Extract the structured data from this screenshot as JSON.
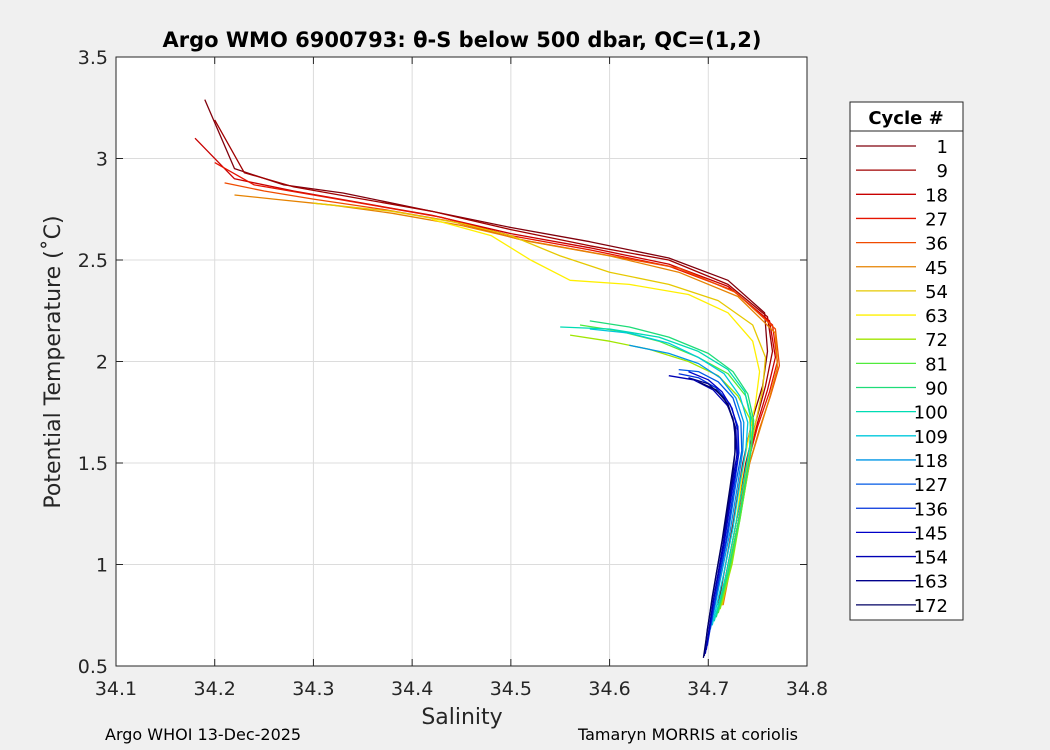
{
  "chart_data": {
    "type": "line",
    "title": "Argo WMO 6900793: θ-S below 500 dbar,  QC=(1,2)",
    "xlabel": "Salinity",
    "ylabel": "Potential Temperature (˚C)",
    "xlim": [
      34.1,
      34.8
    ],
    "ylim": [
      0.5,
      3.5
    ],
    "xticks": [
      "34.1",
      "34.2",
      "34.3",
      "34.4",
      "34.5",
      "34.6",
      "34.7",
      "34.8"
    ],
    "yticks": [
      "0.5",
      "1",
      "1.5",
      "2",
      "2.5",
      "3",
      "3.5"
    ],
    "grid": true,
    "legend": {
      "title": "Cycle #",
      "placement": "outside-right"
    },
    "series": [
      {
        "name": "1",
        "color": "#80000c",
        "points": [
          [
            34.19,
            3.29
          ],
          [
            34.22,
            2.95
          ],
          [
            34.27,
            2.87
          ],
          [
            34.33,
            2.83
          ],
          [
            34.4,
            2.76
          ],
          [
            34.5,
            2.66
          ],
          [
            34.58,
            2.59
          ],
          [
            34.66,
            2.51
          ],
          [
            34.72,
            2.4
          ],
          [
            34.757,
            2.24
          ],
          [
            34.76,
            2.05
          ],
          [
            34.755,
            1.88
          ],
          [
            34.745,
            1.72
          ],
          [
            34.735,
            1.5
          ],
          [
            34.725,
            1.2
          ],
          [
            34.71,
            0.8
          ]
        ]
      },
      {
        "name": "9",
        "color": "#a00000",
        "points": [
          [
            34.2,
            3.19
          ],
          [
            34.23,
            2.93
          ],
          [
            34.28,
            2.86
          ],
          [
            34.35,
            2.8
          ],
          [
            34.42,
            2.74
          ],
          [
            34.5,
            2.65
          ],
          [
            34.58,
            2.57
          ],
          [
            34.66,
            2.5
          ],
          [
            34.72,
            2.38
          ],
          [
            34.76,
            2.22
          ],
          [
            34.765,
            2.05
          ],
          [
            34.758,
            1.88
          ],
          [
            34.748,
            1.7
          ],
          [
            34.738,
            1.5
          ],
          [
            34.728,
            1.2
          ],
          [
            34.712,
            0.8
          ]
        ]
      },
      {
        "name": "18",
        "color": "#c80000",
        "points": [
          [
            34.18,
            3.1
          ],
          [
            34.22,
            2.9
          ],
          [
            34.28,
            2.84
          ],
          [
            34.35,
            2.78
          ],
          [
            34.42,
            2.72
          ],
          [
            34.5,
            2.63
          ],
          [
            34.58,
            2.56
          ],
          [
            34.66,
            2.48
          ],
          [
            34.72,
            2.37
          ],
          [
            34.762,
            2.2
          ],
          [
            34.768,
            2.02
          ],
          [
            34.76,
            1.86
          ],
          [
            34.75,
            1.7
          ],
          [
            34.74,
            1.5
          ],
          [
            34.728,
            1.2
          ],
          [
            34.713,
            0.8
          ]
        ]
      },
      {
        "name": "27",
        "color": "#e61400",
        "points": [
          [
            34.2,
            2.98
          ],
          [
            34.24,
            2.87
          ],
          [
            34.3,
            2.82
          ],
          [
            34.36,
            2.77
          ],
          [
            34.43,
            2.71
          ],
          [
            34.5,
            2.62
          ],
          [
            34.58,
            2.55
          ],
          [
            34.66,
            2.47
          ],
          [
            34.725,
            2.35
          ],
          [
            34.765,
            2.18
          ],
          [
            34.77,
            2.0
          ],
          [
            34.762,
            1.85
          ],
          [
            34.75,
            1.68
          ],
          [
            34.74,
            1.5
          ],
          [
            34.73,
            1.2
          ],
          [
            34.714,
            0.8
          ]
        ]
      },
      {
        "name": "36",
        "color": "#f04b00",
        "points": [
          [
            34.21,
            2.88
          ],
          [
            34.25,
            2.84
          ],
          [
            34.3,
            2.8
          ],
          [
            34.37,
            2.75
          ],
          [
            34.44,
            2.69
          ],
          [
            34.51,
            2.6
          ],
          [
            34.59,
            2.53
          ],
          [
            34.67,
            2.46
          ],
          [
            34.728,
            2.34
          ],
          [
            34.768,
            2.16
          ],
          [
            34.772,
            1.98
          ],
          [
            34.763,
            1.83
          ],
          [
            34.752,
            1.67
          ],
          [
            34.742,
            1.5
          ],
          [
            34.73,
            1.2
          ],
          [
            34.714,
            0.8
          ]
        ]
      },
      {
        "name": "45",
        "color": "#e68200",
        "points": [
          [
            34.22,
            2.82
          ],
          [
            34.26,
            2.8
          ],
          [
            34.32,
            2.77
          ],
          [
            34.38,
            2.73
          ],
          [
            34.45,
            2.67
          ],
          [
            34.52,
            2.59
          ],
          [
            34.6,
            2.52
          ],
          [
            34.67,
            2.44
          ],
          [
            34.73,
            2.32
          ],
          [
            34.768,
            2.14
          ],
          [
            34.77,
            1.97
          ],
          [
            34.762,
            1.82
          ],
          [
            34.752,
            1.66
          ],
          [
            34.742,
            1.5
          ],
          [
            34.731,
            1.2
          ],
          [
            34.715,
            0.8
          ]
        ]
      },
      {
        "name": "54",
        "color": "#e6c800",
        "points": [
          [
            34.3,
            2.78
          ],
          [
            34.38,
            2.74
          ],
          [
            34.45,
            2.68
          ],
          [
            34.5,
            2.62
          ],
          [
            34.55,
            2.52
          ],
          [
            34.6,
            2.44
          ],
          [
            34.66,
            2.38
          ],
          [
            34.71,
            2.3
          ],
          [
            34.745,
            2.18
          ],
          [
            34.758,
            2.02
          ],
          [
            34.755,
            1.86
          ],
          [
            34.748,
            1.7
          ],
          [
            34.74,
            1.5
          ],
          [
            34.73,
            1.2
          ],
          [
            34.714,
            0.8
          ]
        ]
      },
      {
        "name": "63",
        "color": "#fff000",
        "points": [
          [
            34.42,
            2.7
          ],
          [
            34.48,
            2.62
          ],
          [
            34.52,
            2.5
          ],
          [
            34.56,
            2.4
          ],
          [
            34.62,
            2.38
          ],
          [
            34.68,
            2.33
          ],
          [
            34.72,
            2.24
          ],
          [
            34.745,
            2.1
          ],
          [
            34.752,
            1.95
          ],
          [
            34.748,
            1.8
          ],
          [
            34.742,
            1.65
          ],
          [
            34.736,
            1.5
          ],
          [
            34.728,
            1.2
          ],
          [
            34.713,
            0.8
          ]
        ]
      },
      {
        "name": "72",
        "color": "#a0e600",
        "points": [
          [
            34.56,
            2.13
          ],
          [
            34.6,
            2.1
          ],
          [
            34.64,
            2.06
          ],
          [
            34.68,
            2.0
          ],
          [
            34.71,
            1.93
          ],
          [
            34.73,
            1.83
          ],
          [
            34.742,
            1.72
          ],
          [
            34.744,
            1.6
          ],
          [
            34.74,
            1.45
          ],
          [
            34.733,
            1.25
          ],
          [
            34.724,
            1.0
          ],
          [
            34.712,
            0.78
          ]
        ]
      },
      {
        "name": "81",
        "color": "#50eb3c",
        "points": [
          [
            34.57,
            2.18
          ],
          [
            34.61,
            2.15
          ],
          [
            34.65,
            2.1
          ],
          [
            34.69,
            2.02
          ],
          [
            34.72,
            1.94
          ],
          [
            34.738,
            1.83
          ],
          [
            34.745,
            1.7
          ],
          [
            34.744,
            1.58
          ],
          [
            34.739,
            1.43
          ],
          [
            34.732,
            1.22
          ],
          [
            34.722,
            0.98
          ],
          [
            34.71,
            0.76
          ]
        ]
      },
      {
        "name": "90",
        "color": "#1edc78",
        "points": [
          [
            34.58,
            2.2
          ],
          [
            34.62,
            2.17
          ],
          [
            34.66,
            2.12
          ],
          [
            34.7,
            2.04
          ],
          [
            34.725,
            1.95
          ],
          [
            34.74,
            1.84
          ],
          [
            34.746,
            1.71
          ],
          [
            34.744,
            1.58
          ],
          [
            34.738,
            1.42
          ],
          [
            34.73,
            1.2
          ],
          [
            34.72,
            0.96
          ],
          [
            34.708,
            0.74
          ]
        ]
      },
      {
        "name": "100",
        "color": "#00dcb4",
        "points": [
          [
            34.55,
            2.17
          ],
          [
            34.6,
            2.16
          ],
          [
            34.65,
            2.12
          ],
          [
            34.69,
            2.05
          ],
          [
            34.72,
            1.96
          ],
          [
            34.737,
            1.85
          ],
          [
            34.743,
            1.72
          ],
          [
            34.742,
            1.58
          ],
          [
            34.736,
            1.42
          ],
          [
            34.728,
            1.2
          ],
          [
            34.718,
            0.95
          ],
          [
            34.706,
            0.72
          ]
        ]
      },
      {
        "name": "109",
        "color": "#00c8dc",
        "points": [
          [
            34.58,
            2.16
          ],
          [
            34.62,
            2.14
          ],
          [
            34.66,
            2.09
          ],
          [
            34.69,
            2.02
          ],
          [
            34.716,
            1.94
          ],
          [
            34.732,
            1.83
          ],
          [
            34.74,
            1.7
          ],
          [
            34.738,
            1.56
          ],
          [
            34.732,
            1.4
          ],
          [
            34.725,
            1.18
          ],
          [
            34.715,
            0.94
          ],
          [
            34.704,
            0.7
          ]
        ]
      },
      {
        "name": "118",
        "color": "#0096e6",
        "points": [
          [
            34.62,
            2.08
          ],
          [
            34.66,
            2.04
          ],
          [
            34.69,
            1.99
          ],
          [
            34.712,
            1.92
          ],
          [
            34.728,
            1.82
          ],
          [
            34.736,
            1.7
          ],
          [
            34.735,
            1.56
          ],
          [
            34.73,
            1.4
          ],
          [
            34.722,
            1.16
          ],
          [
            34.712,
            0.92
          ],
          [
            34.702,
            0.68
          ]
        ]
      },
      {
        "name": "127",
        "color": "#005ae6",
        "points": [
          [
            34.67,
            1.96
          ],
          [
            34.69,
            1.95
          ],
          [
            34.71,
            1.9
          ],
          [
            34.725,
            1.82
          ],
          [
            34.733,
            1.7
          ],
          [
            34.734,
            1.56
          ],
          [
            34.728,
            1.4
          ],
          [
            34.72,
            1.15
          ],
          [
            34.71,
            0.9
          ],
          [
            34.7,
            0.64
          ]
        ]
      },
      {
        "name": "136",
        "color": "#0032dc",
        "points": [
          [
            34.67,
            1.94
          ],
          [
            34.69,
            1.92
          ],
          [
            34.708,
            1.87
          ],
          [
            34.722,
            1.79
          ],
          [
            34.73,
            1.68
          ],
          [
            34.731,
            1.55
          ],
          [
            34.726,
            1.38
          ],
          [
            34.718,
            1.12
          ],
          [
            34.708,
            0.86
          ],
          [
            34.699,
            0.6
          ]
        ]
      },
      {
        "name": "145",
        "color": "#0000c8",
        "points": [
          [
            34.68,
            1.95
          ],
          [
            34.7,
            1.91
          ],
          [
            34.714,
            1.85
          ],
          [
            34.724,
            1.77
          ],
          [
            34.73,
            1.66
          ],
          [
            34.73,
            1.53
          ],
          [
            34.724,
            1.36
          ],
          [
            34.716,
            1.1
          ],
          [
            34.706,
            0.84
          ],
          [
            34.698,
            0.58
          ]
        ]
      },
      {
        "name": "154",
        "color": "#0000b4",
        "points": [
          [
            34.66,
            1.93
          ],
          [
            34.685,
            1.91
          ],
          [
            34.705,
            1.86
          ],
          [
            34.72,
            1.78
          ],
          [
            34.728,
            1.67
          ],
          [
            34.729,
            1.54
          ],
          [
            34.723,
            1.36
          ],
          [
            34.715,
            1.1
          ],
          [
            34.705,
            0.82
          ],
          [
            34.697,
            0.56
          ]
        ]
      },
      {
        "name": "163",
        "color": "#00008c",
        "points": [
          [
            34.68,
            1.92
          ],
          [
            34.7,
            1.89
          ],
          [
            34.716,
            1.82
          ],
          [
            34.725,
            1.72
          ],
          [
            34.728,
            1.6
          ],
          [
            34.725,
            1.45
          ],
          [
            34.718,
            1.22
          ],
          [
            34.708,
            0.95
          ],
          [
            34.699,
            0.68
          ],
          [
            34.696,
            0.55
          ]
        ]
      },
      {
        "name": "172",
        "color": "#000064",
        "points": [
          [
            34.69,
            1.9
          ],
          [
            34.708,
            1.86
          ],
          [
            34.72,
            1.79
          ],
          [
            34.727,
            1.68
          ],
          [
            34.727,
            1.55
          ],
          [
            34.722,
            1.38
          ],
          [
            34.714,
            1.12
          ],
          [
            34.704,
            0.84
          ],
          [
            34.695,
            0.54
          ]
        ]
      }
    ]
  },
  "footer": {
    "left": "Argo WHOI 13-Dec-2025",
    "right": "Tamaryn MORRIS at coriolis"
  }
}
